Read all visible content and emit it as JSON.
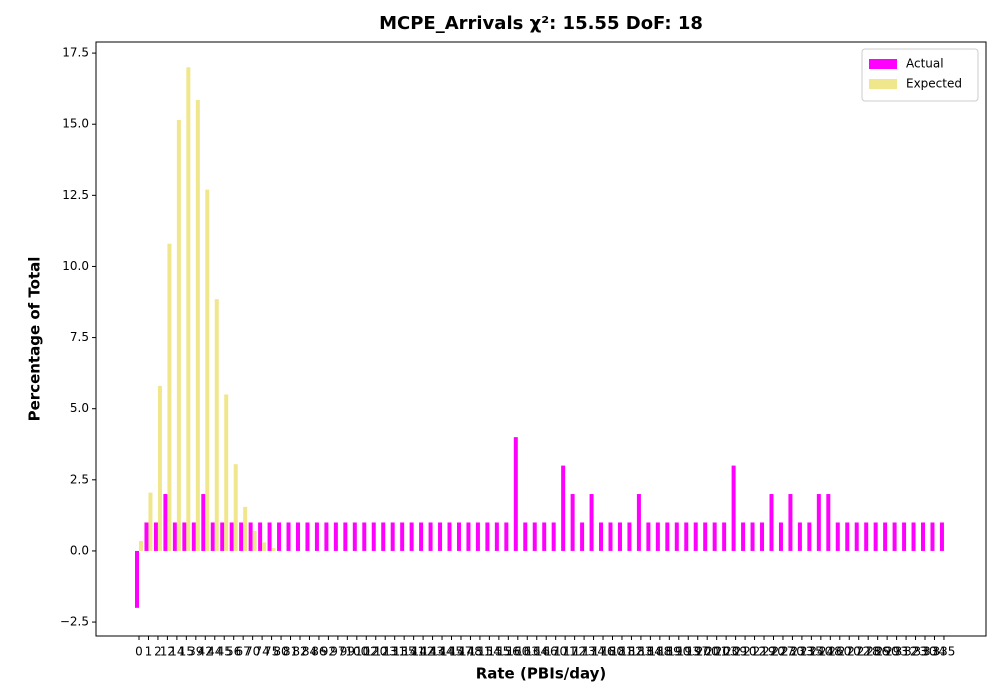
{
  "chart_data": {
    "type": "bar",
    "title": "MCPE_Arrivals χ²: 15.55 DoF: 18",
    "x_label": "Rate (PBIs/day)",
    "y_label": "Percentage of Total",
    "categories": [
      "0",
      "1",
      "2",
      "12",
      "14",
      "15",
      "39",
      "42",
      "44",
      "45",
      "56",
      "67",
      "70",
      "74",
      "75",
      "80",
      "81",
      "82",
      "84",
      "86",
      "92",
      "97",
      "99",
      "100",
      "102",
      "120",
      "123",
      "131",
      "135",
      "141",
      "142",
      "143",
      "144",
      "145",
      "147",
      "148",
      "151",
      "154",
      "155",
      "156",
      "160",
      "163",
      "164",
      "166",
      "170",
      "171",
      "172",
      "173",
      "174",
      "176",
      "180",
      "181",
      "182",
      "183",
      "184",
      "188",
      "189",
      "190",
      "193",
      "197",
      "200",
      "201",
      "203",
      "209",
      "210",
      "212",
      "219",
      "220",
      "227",
      "230",
      "233",
      "235",
      "240",
      "248",
      "260",
      "270",
      "272",
      "278",
      "286",
      "290",
      "293",
      "312",
      "323",
      "330",
      "334",
      "335"
    ],
    "series": [
      {
        "name": "Actual",
        "color": "#ff00ff",
        "values": [
          -2,
          1,
          1,
          2,
          1,
          1,
          1,
          2,
          1,
          1,
          1,
          1,
          1,
          1,
          1,
          1,
          1,
          1,
          1,
          1,
          1,
          1,
          1,
          1,
          1,
          1,
          1,
          1,
          1,
          1,
          1,
          1,
          1,
          1,
          1,
          1,
          1,
          1,
          1,
          1,
          4,
          1,
          1,
          1,
          1,
          3,
          2,
          1,
          2,
          1,
          1,
          1,
          1,
          2,
          1,
          1,
          1,
          1,
          1,
          1,
          1,
          1,
          1,
          3,
          1,
          1,
          1,
          2,
          1,
          2,
          1,
          1,
          2,
          2,
          1,
          1,
          1,
          1,
          1,
          1,
          1,
          1,
          1,
          1,
          1,
          1
        ]
      },
      {
        "name": "Expected",
        "color": "#f0e68c",
        "values": [
          0.35,
          2.05,
          5.8,
          10.8,
          15.15,
          17,
          15.85,
          12.7,
          8.85,
          5.5,
          3.05,
          1.55,
          0.7,
          0.3,
          0.1,
          0,
          0,
          0,
          0,
          0,
          0,
          0,
          0,
          0,
          0,
          0,
          0,
          0,
          0,
          0,
          0,
          0,
          0,
          0,
          0,
          0,
          0,
          0,
          0,
          0,
          0,
          0,
          0,
          0,
          0,
          0,
          0,
          0,
          0,
          0,
          0,
          0,
          0,
          0,
          0,
          0,
          0,
          0,
          0,
          0,
          0,
          0,
          0,
          0,
          0,
          0,
          0,
          0,
          0,
          0,
          0,
          0,
          0,
          0,
          0,
          0,
          0,
          0,
          0,
          0,
          0,
          0,
          0,
          0,
          0,
          0
        ]
      }
    ],
    "ylim": [
      -2.99,
      17.89
    ],
    "yticks": [
      {
        "value": -2.5,
        "label": "−2.5"
      },
      {
        "value": 0,
        "label": "0.0"
      },
      2.5,
      {
        "value": 5,
        "label": "5.0"
      },
      7.5,
      {
        "value": 10,
        "label": "10.0"
      },
      12.5,
      {
        "value": 15,
        "label": "15.0"
      },
      17.5
    ],
    "grid": false,
    "legend": "upper right"
  }
}
